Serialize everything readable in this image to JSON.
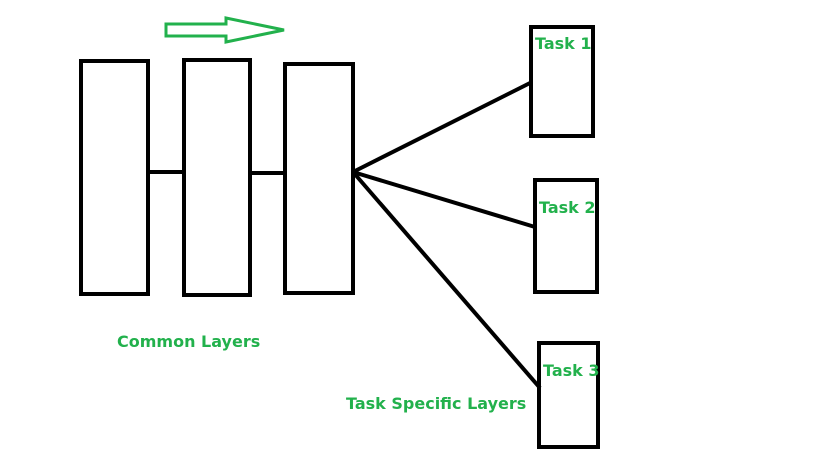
{
  "colors": {
    "stroke": "#000000",
    "accent": "#22b14c",
    "background": "#ffffff"
  },
  "direction_arrow": {
    "icon": "right-arrow-icon",
    "meaning": "flow-direction"
  },
  "common_layers": {
    "label": "Common Layers",
    "count": 3
  },
  "task_specific_layers": {
    "label": "Task Specific Layers",
    "tasks": [
      {
        "label": "Task 1"
      },
      {
        "label": "Task 2"
      },
      {
        "label": "Task 3"
      }
    ]
  }
}
